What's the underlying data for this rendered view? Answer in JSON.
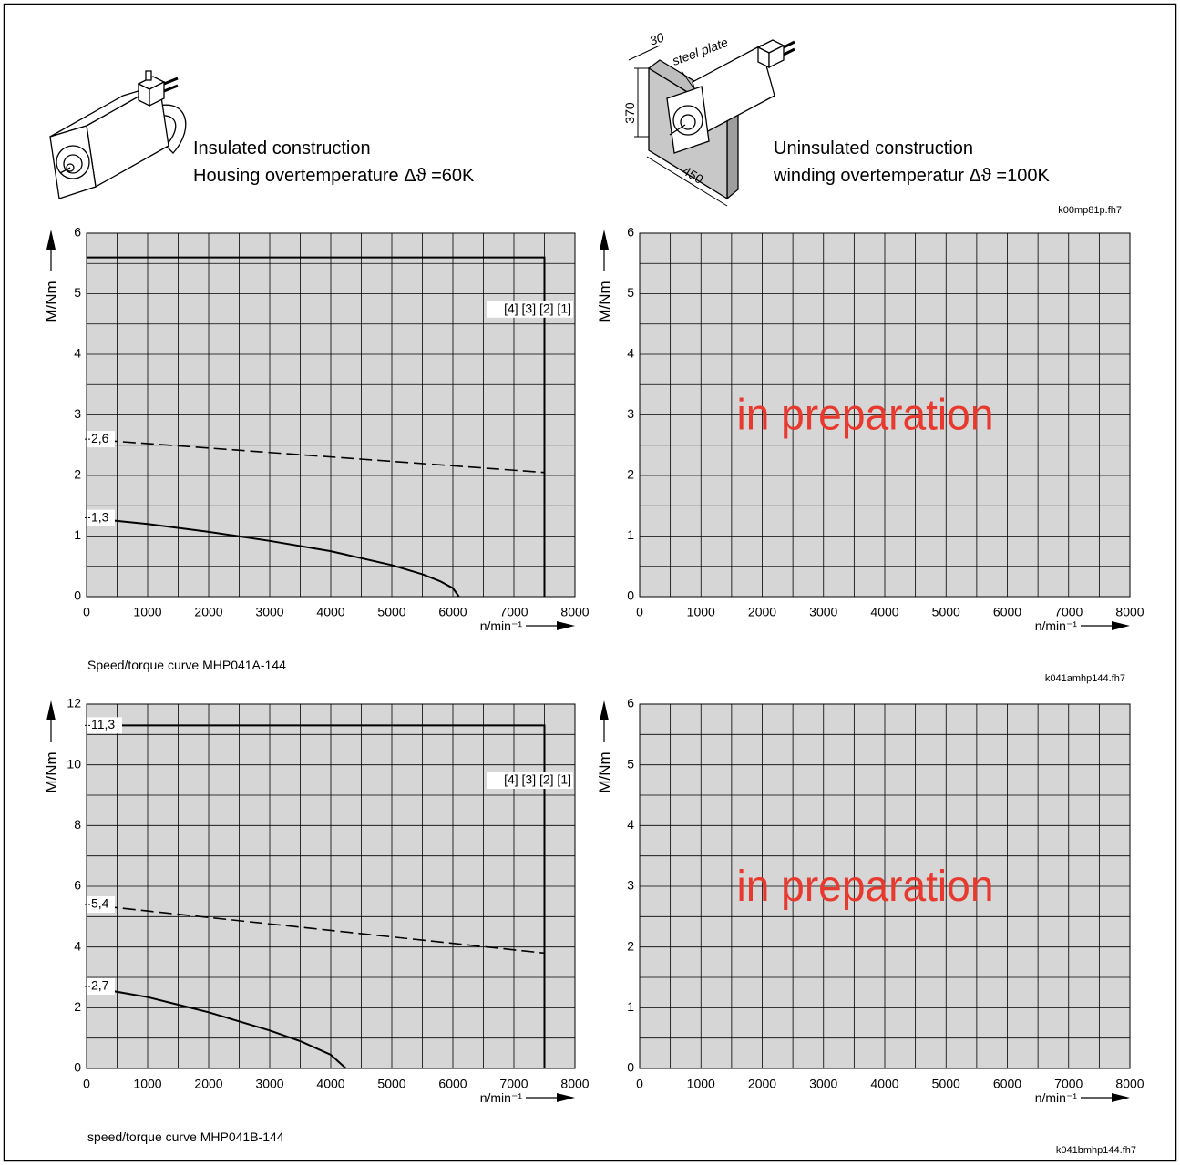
{
  "header": {
    "left": [
      "Insulated construction",
      "Housing overtemperature Δϑ =60K"
    ],
    "right": [
      "Uninsulated construction",
      "winding overtemperatur Δϑ =100K"
    ],
    "figure_ref": "k00mp81p.fh7"
  },
  "figure": {
    "thickness_label": "30",
    "plate_label": "steel plate",
    "height_label": "370",
    "width_label": "450"
  },
  "file_refs": [
    "k041amhp144.fh7",
    "k041bmhp144.fh7"
  ],
  "chart_data": [
    {
      "type": "line",
      "title": "Speed/torque curve MHP041A-144",
      "x_label": "n/min⁻¹",
      "y_label": "M/Nm",
      "xlim": [
        0,
        8000
      ],
      "xticks": [
        0,
        1000,
        2000,
        3000,
        4000,
        5000,
        6000,
        7000,
        8000
      ],
      "ylim": [
        0,
        6
      ],
      "yticks": [
        0,
        1,
        2,
        3,
        4,
        5,
        6
      ],
      "grid": true,
      "grid_subdivisions": 2,
      "background": "#d6d6d6",
      "curve_labels": "[4] [3] [2] [1]",
      "series": [
        {
          "color": "#000000",
          "dash": false,
          "x": [
            0,
            7500,
            7500
          ],
          "values": [
            5.6,
            5.6,
            0
          ]
        },
        {
          "color": "#000000",
          "dash": true,
          "x": [
            0,
            7500
          ],
          "values": [
            2.6,
            2.05
          ],
          "value_labels": [
            "2,6",
            null
          ]
        },
        {
          "color": "#000000",
          "dash": false,
          "x": [
            0,
            1000,
            2000,
            3000,
            4000,
            5000,
            5500,
            5800,
            6000,
            6100
          ],
          "values": [
            1.3,
            1.2,
            1.07,
            0.92,
            0.75,
            0.52,
            0.37,
            0.25,
            0.14,
            0
          ],
          "value_labels": [
            "1,3",
            null,
            null,
            null,
            null,
            null,
            null,
            null,
            null,
            null
          ]
        }
      ]
    },
    {
      "type": "line",
      "x_label": "n/min⁻¹",
      "y_label": "M/Nm",
      "xlim": [
        0,
        8000
      ],
      "xticks": [
        0,
        1000,
        2000,
        3000,
        4000,
        5000,
        6000,
        7000,
        8000
      ],
      "ylim": [
        0,
        6
      ],
      "yticks": [
        0,
        1,
        2,
        3,
        4,
        5,
        6
      ],
      "grid": true,
      "grid_subdivisions": 2,
      "background": "#d6d6d6",
      "note": "in preparation",
      "note_color": "#e8392f",
      "series": []
    },
    {
      "type": "line",
      "title": "speed/torque curve MHP041B-144",
      "x_label": "n/min⁻¹",
      "y_label": "M/Nm",
      "xlim": [
        0,
        8000
      ],
      "xticks": [
        0,
        1000,
        2000,
        3000,
        4000,
        5000,
        6000,
        7000,
        8000
      ],
      "ylim": [
        0,
        12
      ],
      "yticks": [
        0,
        2,
        4,
        6,
        8,
        10,
        12
      ],
      "grid": true,
      "grid_subdivisions": 2,
      "background": "#d6d6d6",
      "curve_labels": "[4] [3] [2] [1]",
      "series": [
        {
          "color": "#000000",
          "dash": false,
          "x": [
            0,
            7500,
            7500
          ],
          "values": [
            11.3,
            11.3,
            0
          ],
          "value_labels": [
            "11,3",
            null,
            null
          ]
        },
        {
          "color": "#000000",
          "dash": true,
          "x": [
            0,
            7500
          ],
          "values": [
            5.4,
            3.8
          ],
          "value_labels": [
            "5,4",
            null
          ]
        },
        {
          "color": "#000000",
          "dash": false,
          "x": [
            0,
            1000,
            1500,
            2000,
            2500,
            3000,
            3500,
            4000,
            4250
          ],
          "values": [
            2.7,
            2.35,
            2.1,
            1.85,
            1.55,
            1.25,
            0.9,
            0.45,
            0
          ],
          "value_labels": [
            "2,7",
            null,
            null,
            null,
            null,
            null,
            null,
            null,
            null
          ]
        }
      ]
    },
    {
      "type": "line",
      "x_label": "n/min⁻¹",
      "y_label": "M/Nm",
      "xlim": [
        0,
        8000
      ],
      "xticks": [
        0,
        1000,
        2000,
        3000,
        4000,
        5000,
        6000,
        7000,
        8000
      ],
      "ylim": [
        0,
        6
      ],
      "yticks": [
        0,
        1,
        2,
        3,
        4,
        5,
        6
      ],
      "grid": true,
      "grid_subdivisions": 2,
      "background": "#d6d6d6",
      "note": "in preparation",
      "note_color": "#e8392f",
      "series": []
    }
  ]
}
